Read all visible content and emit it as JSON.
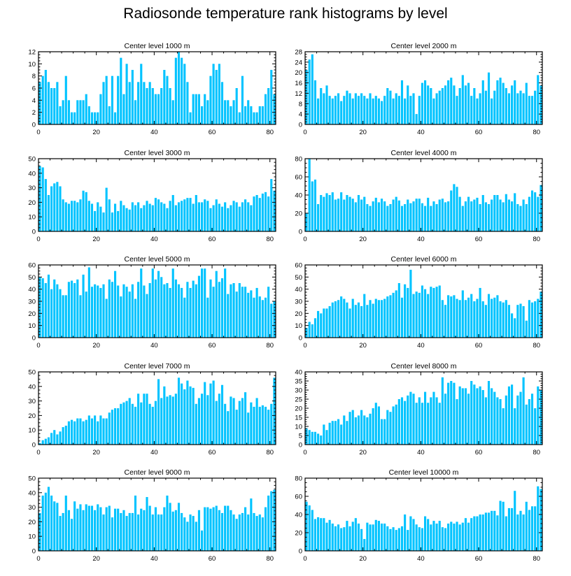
{
  "title": "Radiosonde temperature rank histograms by level",
  "colors": {
    "bar": "#00c3ff",
    "axis": "#000000"
  },
  "chart_data": [
    {
      "type": "bar",
      "title": "Center level 1000 m",
      "xlim": [
        0,
        82
      ],
      "ylim": [
        0,
        12
      ],
      "xticks": [
        0,
        20,
        40,
        60,
        80
      ],
      "yticks": [
        0,
        2,
        4,
        6,
        8,
        10,
        12
      ],
      "values": [
        7,
        8,
        9,
        7,
        6,
        6,
        7,
        3,
        4,
        8,
        4,
        2,
        2,
        4,
        4,
        4,
        5,
        3,
        2,
        2,
        2,
        5,
        7,
        8,
        3,
        8,
        2,
        8,
        11,
        5,
        10,
        7,
        9,
        4,
        7,
        10,
        7,
        6,
        7,
        6,
        5,
        5,
        6,
        9,
        8,
        6,
        4,
        11,
        12,
        11,
        10,
        7,
        2,
        5,
        5,
        5,
        3,
        5,
        4,
        8,
        10,
        9,
        10,
        7,
        4,
        4,
        3,
        4,
        6,
        2,
        8,
        3,
        4,
        3,
        2,
        2,
        3,
        3,
        5,
        6,
        9,
        5
      ]
    },
    {
      "type": "bar",
      "title": "Center level 2000 m",
      "xlim": [
        0,
        82
      ],
      "ylim": [
        0,
        28
      ],
      "xticks": [
        0,
        20,
        40,
        60,
        80
      ],
      "yticks": [
        0,
        4,
        8,
        12,
        16,
        20,
        24,
        28
      ],
      "values": [
        21,
        25,
        27,
        17,
        10,
        14,
        12,
        15,
        11,
        10,
        11,
        12,
        9,
        11,
        13,
        12,
        10,
        12,
        11,
        12,
        11,
        10,
        12,
        10,
        11,
        10,
        9,
        11,
        14,
        13,
        10,
        12,
        11,
        17,
        10,
        15,
        11,
        12,
        4,
        11,
        16,
        17,
        15,
        14,
        10,
        12,
        13,
        14,
        15,
        17,
        18,
        15,
        11,
        14,
        19,
        15,
        16,
        11,
        14,
        10,
        12,
        17,
        13,
        20,
        10,
        13,
        17,
        18,
        16,
        14,
        12,
        15,
        17,
        12,
        13,
        12,
        16,
        11,
        11,
        13,
        19,
        15
      ]
    },
    {
      "type": "bar",
      "title": "Center level 3000 m",
      "xlim": [
        0,
        82
      ],
      "ylim": [
        0,
        50
      ],
      "xticks": [
        0,
        20,
        40,
        60,
        80
      ],
      "yticks": [
        0,
        10,
        20,
        30,
        40,
        50
      ],
      "values": [
        45,
        44,
        36,
        25,
        31,
        33,
        34,
        31,
        22,
        20,
        19,
        21,
        21,
        20,
        22,
        28,
        27,
        21,
        19,
        14,
        20,
        17,
        13,
        30,
        22,
        13,
        19,
        14,
        21,
        18,
        16,
        15,
        20,
        18,
        20,
        16,
        18,
        21,
        19,
        18,
        23,
        22,
        20,
        19,
        16,
        21,
        25,
        18,
        20,
        21,
        22,
        23,
        23,
        19,
        25,
        20,
        20,
        22,
        21,
        16,
        18,
        22,
        19,
        17,
        20,
        16,
        18,
        21,
        20,
        17,
        20,
        22,
        20,
        18,
        24,
        25,
        23,
        26,
        27,
        24,
        36,
        28
      ]
    },
    {
      "type": "bar",
      "title": "Center level 4000 m",
      "xlim": [
        0,
        82
      ],
      "ylim": [
        0,
        80
      ],
      "xticks": [
        0,
        20,
        40,
        60,
        80
      ],
      "yticks": [
        0,
        20,
        40,
        60,
        80
      ],
      "values": [
        20,
        80,
        55,
        57,
        30,
        40,
        38,
        42,
        40,
        43,
        35,
        36,
        43,
        35,
        40,
        38,
        36,
        32,
        40,
        35,
        38,
        30,
        28,
        33,
        37,
        32,
        36,
        33,
        28,
        30,
        35,
        38,
        34,
        28,
        30,
        35,
        31,
        33,
        36,
        36,
        31,
        28,
        37,
        28,
        33,
        30,
        35,
        36,
        32,
        33,
        45,
        52,
        49,
        38,
        28,
        33,
        38,
        33,
        35,
        37,
        30,
        40,
        32,
        30,
        35,
        40,
        40,
        35,
        32,
        41,
        35,
        33,
        42,
        30,
        28,
        35,
        30,
        38,
        45,
        43,
        38,
        51
      ]
    },
    {
      "type": "bar",
      "title": "Center level 5000 m",
      "xlim": [
        0,
        82
      ],
      "ylim": [
        0,
        60
      ],
      "xticks": [
        0,
        20,
        40,
        60,
        80
      ],
      "yticks": [
        0,
        10,
        20,
        30,
        40,
        50,
        60
      ],
      "values": [
        50,
        49,
        45,
        52,
        40,
        48,
        44,
        40,
        35,
        35,
        46,
        47,
        45,
        48,
        35,
        52,
        38,
        58,
        42,
        44,
        43,
        41,
        44,
        32,
        48,
        46,
        55,
        43,
        34,
        44,
        42,
        38,
        44,
        32,
        46,
        57,
        43,
        36,
        45,
        57,
        48,
        55,
        50,
        44,
        45,
        41,
        57,
        48,
        44,
        41,
        33,
        46,
        41,
        47,
        44,
        51,
        57,
        57,
        33,
        48,
        42,
        55,
        46,
        49,
        57,
        36,
        44,
        45,
        38,
        45,
        42,
        42,
        37,
        39,
        33,
        41,
        34,
        31,
        33,
        42,
        28,
        30
      ]
    },
    {
      "type": "bar",
      "title": "Center level 6000 m",
      "xlim": [
        0,
        82
      ],
      "ylim": [
        0,
        60
      ],
      "xticks": [
        0,
        20,
        40,
        60,
        80
      ],
      "yticks": [
        0,
        10,
        20,
        30,
        40,
        50,
        60
      ],
      "values": [
        8,
        13,
        11,
        16,
        22,
        20,
        24,
        24,
        26,
        29,
        30,
        31,
        34,
        32,
        29,
        24,
        32,
        27,
        29,
        26,
        36,
        27,
        31,
        28,
        32,
        31,
        31,
        32,
        34,
        35,
        37,
        39,
        45,
        33,
        44,
        41,
        56,
        36,
        38,
        37,
        43,
        40,
        36,
        42,
        41,
        42,
        43,
        31,
        27,
        35,
        34,
        35,
        32,
        31,
        39,
        31,
        33,
        36,
        30,
        32,
        41,
        30,
        27,
        36,
        32,
        33,
        35,
        30,
        29,
        31,
        27,
        20,
        16,
        27,
        28,
        26,
        14,
        31,
        29,
        30,
        32,
        38
      ]
    },
    {
      "type": "bar",
      "title": "Center level 7000 m",
      "xlim": [
        0,
        82
      ],
      "ylim": [
        0,
        50
      ],
      "xticks": [
        0,
        20,
        40,
        60,
        80
      ],
      "yticks": [
        0,
        10,
        20,
        30,
        40,
        50
      ],
      "values": [
        1,
        3,
        4,
        5,
        8,
        10,
        7,
        9,
        12,
        13,
        16,
        17,
        16,
        18,
        18,
        16,
        17,
        20,
        18,
        20,
        16,
        20,
        18,
        18,
        22,
        24,
        25,
        25,
        28,
        29,
        30,
        32,
        28,
        26,
        35,
        29,
        35,
        35,
        28,
        26,
        30,
        45,
        32,
        40,
        33,
        34,
        33,
        35,
        46,
        42,
        38,
        44,
        40,
        39,
        28,
        32,
        35,
        43,
        34,
        42,
        44,
        30,
        35,
        41,
        28,
        23,
        33,
        32,
        24,
        30,
        32,
        36,
        22,
        29,
        26,
        32,
        26,
        27,
        26,
        24,
        28,
        46
      ]
    },
    {
      "type": "bar",
      "title": "Center level 8000 m",
      "xlim": [
        0,
        82
      ],
      "ylim": [
        0,
        40
      ],
      "xticks": [
        0,
        20,
        40,
        60,
        80
      ],
      "yticks": [
        0,
        5,
        10,
        15,
        20,
        25,
        30,
        35,
        40
      ],
      "values": [
        9,
        8,
        7,
        7,
        6,
        5,
        11,
        8,
        12,
        13,
        13,
        14,
        11,
        16,
        13,
        18,
        19,
        15,
        16,
        19,
        16,
        15,
        17,
        20,
        23,
        21,
        14,
        14,
        19,
        18,
        21,
        22,
        25,
        26,
        24,
        27,
        29,
        28,
        23,
        26,
        23,
        29,
        23,
        26,
        29,
        26,
        23,
        37,
        28,
        34,
        35,
        34,
        25,
        32,
        31,
        31,
        28,
        35,
        33,
        31,
        32,
        30,
        26,
        35,
        31,
        29,
        26,
        25,
        20,
        27,
        32,
        33,
        20,
        27,
        29,
        37,
        22,
        25,
        28,
        20,
        32,
        30
      ]
    },
    {
      "type": "bar",
      "title": "Center level 9000 m",
      "xlim": [
        0,
        82
      ],
      "ylim": [
        0,
        50
      ],
      "xticks": [
        0,
        20,
        40,
        60,
        80
      ],
      "yticks": [
        0,
        10,
        20,
        30,
        40,
        50
      ],
      "values": [
        26,
        38,
        40,
        44,
        38,
        34,
        33,
        24,
        26,
        38,
        28,
        22,
        34,
        29,
        32,
        28,
        32,
        31,
        31,
        28,
        32,
        30,
        25,
        30,
        31,
        23,
        29,
        29,
        26,
        28,
        24,
        26,
        26,
        38,
        25,
        29,
        28,
        37,
        31,
        25,
        30,
        25,
        25,
        30,
        38,
        33,
        27,
        28,
        33,
        26,
        23,
        20,
        25,
        24,
        20,
        28,
        14,
        30,
        30,
        29,
        30,
        31,
        28,
        26,
        31,
        31,
        28,
        25,
        22,
        25,
        26,
        30,
        25,
        36,
        26,
        24,
        25,
        23,
        30,
        38,
        41,
        42
      ]
    },
    {
      "type": "bar",
      "title": "Center level 10000 m",
      "xlim": [
        0,
        82
      ],
      "ylim": [
        0,
        80
      ],
      "xticks": [
        0,
        20,
        40,
        60,
        80
      ],
      "yticks": [
        0,
        20,
        40,
        60,
        80
      ],
      "values": [
        54,
        50,
        45,
        35,
        37,
        36,
        36,
        31,
        34,
        30,
        27,
        29,
        25,
        26,
        33,
        27,
        32,
        36,
        30,
        24,
        13,
        31,
        29,
        29,
        34,
        33,
        30,
        30,
        27,
        24,
        26,
        23,
        25,
        27,
        40,
        23,
        38,
        35,
        29,
        26,
        25,
        38,
        35,
        29,
        33,
        30,
        33,
        26,
        25,
        30,
        32,
        30,
        32,
        29,
        31,
        36,
        31,
        36,
        38,
        38,
        40,
        40,
        42,
        42,
        44,
        44,
        39,
        55,
        54,
        38,
        47,
        47,
        66,
        40,
        44,
        40,
        54,
        45,
        49,
        49,
        71,
        68
      ]
    }
  ]
}
